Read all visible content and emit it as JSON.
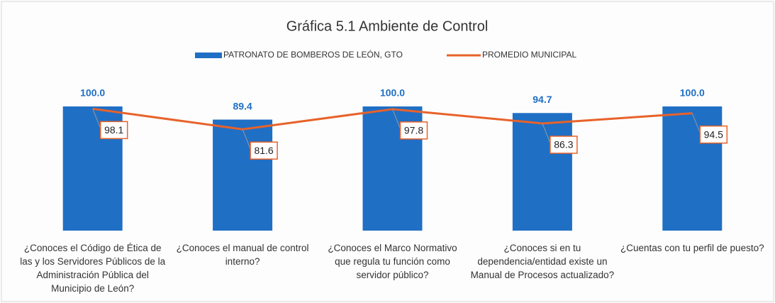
{
  "chart_data": {
    "type": "bar",
    "title": "Gráfica 5.1 Ambiente de Control",
    "categories": [
      "¿Conoces el Código de Ética de las y los Servidores Públicos de la Administración Pública del Municipio de León?",
      "¿Conoces el manual de control interno?",
      "¿Conoces el Marco Normativo que regula tu función como servidor público?",
      "¿Conoces si en tu dependencia/entidad existe un Manual de Procesos actualizado?",
      "¿Cuentas con tu perfil de puesto?"
    ],
    "series": [
      {
        "name": "PATRONATO DE BOMBEROS DE LEÓN, GTO",
        "type": "bar",
        "color": "#1f6fc5",
        "values": [
          100,
          89.4,
          100,
          94.7,
          100
        ],
        "value_labels": [
          "100.0",
          "89.4",
          "100.0",
          "94.7",
          "100.0"
        ]
      },
      {
        "name": "PROMEDIO MUNICIPAL",
        "type": "line",
        "color": "#e8622a",
        "values": [
          98.1,
          81.6,
          97.8,
          86.3,
          94.5
        ]
      }
    ],
    "ylim": [
      0,
      100
    ],
    "legend": "top"
  }
}
